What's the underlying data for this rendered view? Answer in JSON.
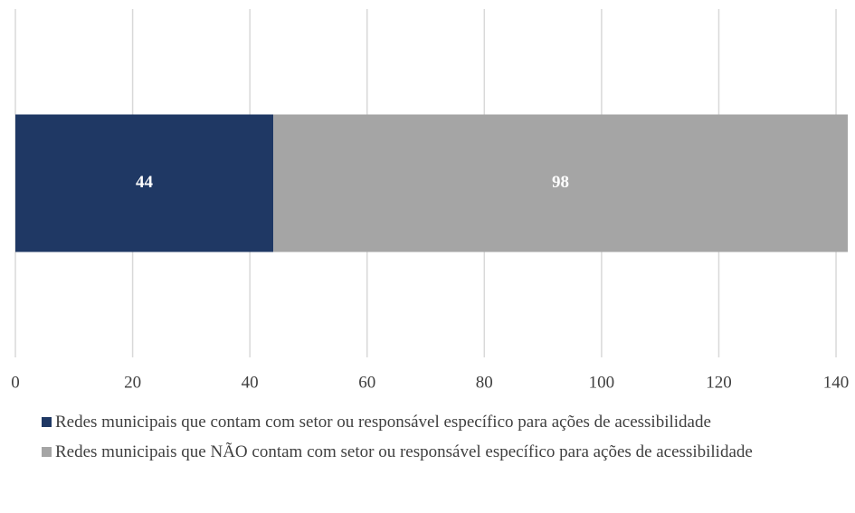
{
  "chart_data": {
    "type": "bar",
    "orientation": "horizontal",
    "stacked": true,
    "categories": [
      null
    ],
    "series": [
      {
        "name": "Redes municipais que contam com setor ou responsável específico para ações de acessibilidade",
        "color": "#1f3864",
        "values": [
          44
        ]
      },
      {
        "name": "Redes municipais que NÃO contam com setor ou responsável específico para ações de acessibilidade",
        "color": "#a5a5a5",
        "values": [
          98
        ]
      }
    ],
    "xlim": [
      0,
      142
    ],
    "xticks": [
      0,
      20,
      40,
      60,
      80,
      100,
      120,
      140
    ],
    "grid": true,
    "legend": "bottom"
  }
}
